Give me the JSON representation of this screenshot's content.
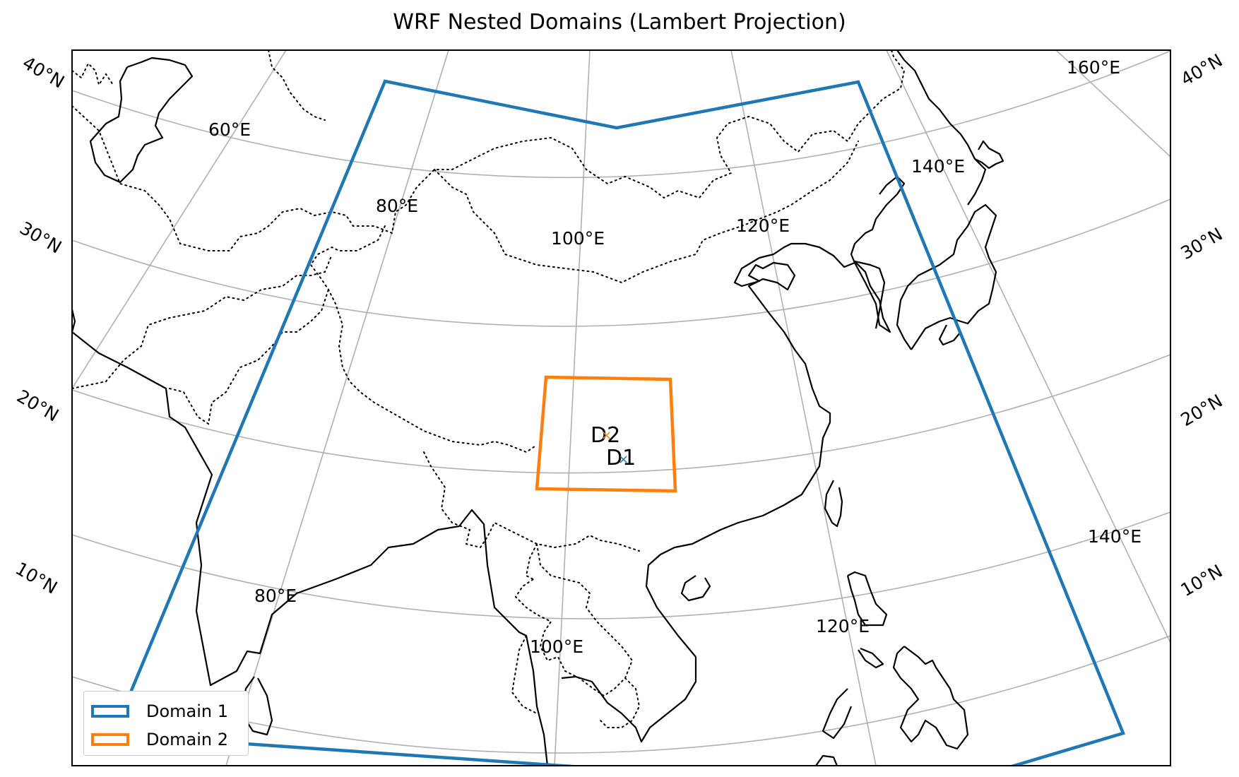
{
  "map": {
    "title": "WRF Nested Domains (Lambert Projection)",
    "colors": {
      "domain1": "#1f77b4",
      "domain2": "#ff7f0e",
      "grid": "#b0b0b0",
      "coast": "#000000"
    },
    "lat_labels_left": [
      "40°N",
      "30°N",
      "20°N",
      "10°N"
    ],
    "lat_labels_right": [
      "40°N",
      "30°N",
      "20°N",
      "10°N"
    ],
    "lon_labels": [
      "60°E",
      "80°E",
      "100°E",
      "120°E",
      "140°E",
      "160°E",
      "140°E",
      "80°E",
      "100°E",
      "120°E"
    ],
    "domain_markers": {
      "d1": "D1",
      "d2": "D2"
    },
    "legend": [
      {
        "label": "Domain 1",
        "color": "#1f77b4"
      },
      {
        "label": "Domain 2",
        "color": "#ff7f0e"
      }
    ]
  }
}
